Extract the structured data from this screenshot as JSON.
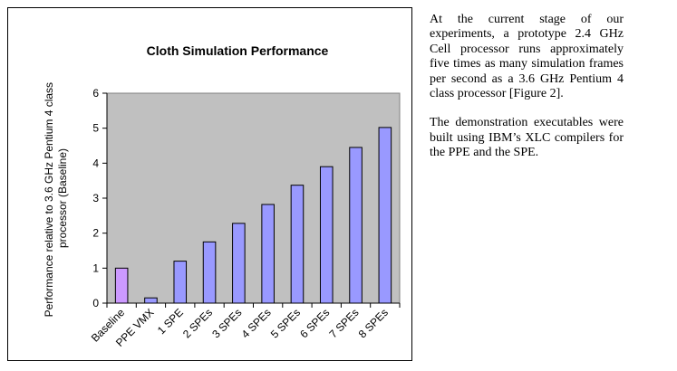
{
  "chart_data": {
    "type": "bar",
    "title": "Cloth Simulation Performance",
    "ylabel_lines": [
      "Performance relative to 3.6 GHz Pentium 4 class",
      "processor (Baseline)"
    ],
    "xlabel": "",
    "categories": [
      "Baseline",
      "PPE VMX",
      "1 SPE",
      "2 SPEs",
      "3 SPEs",
      "4 SPEs",
      "5 SPEs",
      "6 SPEs",
      "7 SPEs",
      "8 SPEs"
    ],
    "values": [
      1.0,
      0.15,
      1.2,
      1.75,
      2.28,
      2.82,
      3.37,
      3.9,
      4.45,
      5.02
    ],
    "ylim": [
      0,
      6
    ],
    "yticks": [
      0,
      1,
      2,
      3,
      4,
      5,
      6
    ],
    "grid": false,
    "plot_background": "#c0c0c0",
    "bar_colors": [
      "#cc99ff",
      "#9999ff",
      "#9999ff",
      "#9999ff",
      "#9999ff",
      "#9999ff",
      "#9999ff",
      "#9999ff",
      "#9999ff",
      "#9999ff"
    ]
  },
  "caption": {
    "paragraphs": [
      "At the current stage of our experiments, a prototype 2.4 GHz Cell processor runs approximately five times as many simulation frames per second as a 3.6 GHz Pentium 4 class processor [Figure 2].",
      "The demonstration executables were built using IBM’s XLC compilers for the PPE and the SPE."
    ]
  }
}
